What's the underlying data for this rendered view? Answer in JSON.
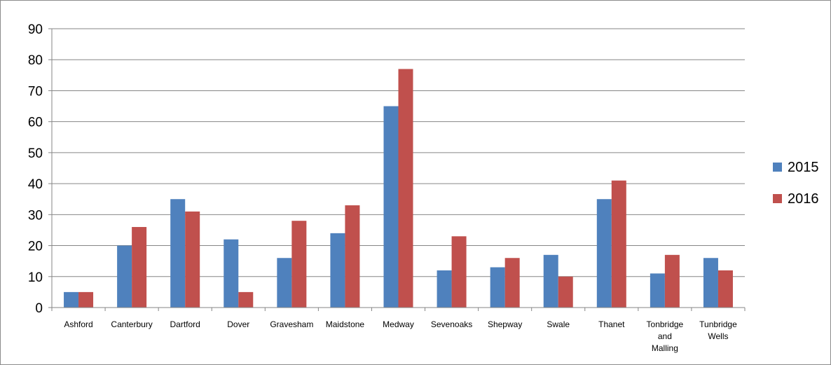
{
  "chart_data": {
    "type": "bar",
    "categories": [
      [
        "Ashford"
      ],
      [
        "Canterbury"
      ],
      [
        "Dartford"
      ],
      [
        "Dover"
      ],
      [
        "Gravesham"
      ],
      [
        "Maidstone"
      ],
      [
        "Medway"
      ],
      [
        "Sevenoaks"
      ],
      [
        "Shepway"
      ],
      [
        "Swale"
      ],
      [
        "Thanet"
      ],
      [
        "Tonbridge",
        "and",
        "Malling"
      ],
      [
        "Tunbridge",
        "Wells"
      ]
    ],
    "series": [
      {
        "name": "2015",
        "color": "#4f81bd",
        "values": [
          5,
          20,
          35,
          22,
          16,
          24,
          65,
          12,
          13,
          17,
          35,
          11,
          16
        ]
      },
      {
        "name": "2016",
        "color": "#c0504d",
        "values": [
          5,
          26,
          31,
          5,
          28,
          33,
          77,
          23,
          16,
          10,
          41,
          17,
          12
        ]
      }
    ],
    "ylim": [
      0,
      90
    ],
    "yticks": [
      0,
      10,
      20,
      30,
      40,
      50,
      60,
      70,
      80,
      90
    ],
    "grid": true,
    "legend_position": "right",
    "title": "",
    "xlabel": "",
    "ylabel": ""
  }
}
